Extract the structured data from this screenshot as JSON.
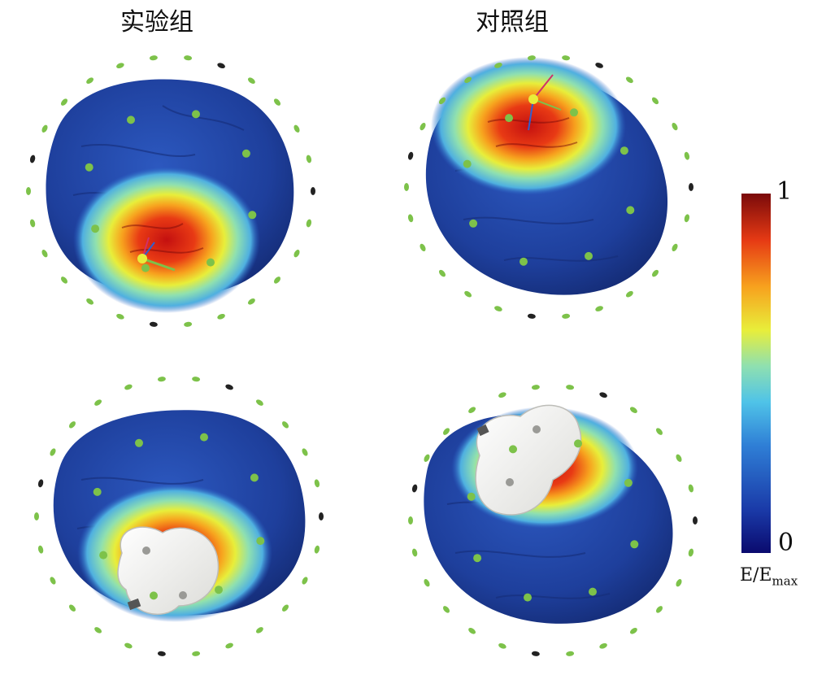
{
  "titles": {
    "experimental_group": "实验组",
    "control_group": "对照组"
  },
  "colorbar": {
    "max_label": "1",
    "min_label": "0",
    "unit_main": "E/E",
    "unit_sub": "max",
    "colormap": "jet",
    "stops": [
      "#0a0a6e",
      "#1a3aa8",
      "#2f7fd6",
      "#4fc3e8",
      "#8fe0b0",
      "#e8ee3a",
      "#f7a21e",
      "#e63a14",
      "#7a0a0a"
    ]
  },
  "panels": [
    {
      "group": "实验组",
      "view": "top",
      "coil_visible": false,
      "hotspot": "left lateral"
    },
    {
      "group": "对照组",
      "view": "top",
      "coil_visible": false,
      "hotspot": "superior frontal"
    },
    {
      "group": "实验组",
      "view": "bottom",
      "coil_visible": true,
      "hotspot": "left lateral"
    },
    {
      "group": "对照组",
      "view": "bottom",
      "coil_visible": true,
      "hotspot": "superior frontal"
    }
  ],
  "colors": {
    "brain_base": "#1e3f9c",
    "electrode": "#7dc24a",
    "marker_dark": "#222222",
    "coil": "#f2f2ef"
  }
}
